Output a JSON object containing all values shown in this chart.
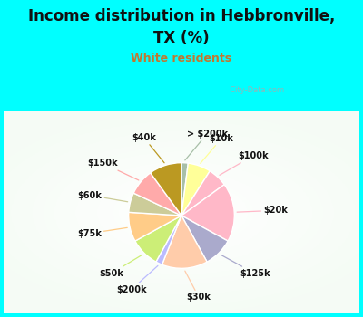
{
  "title_line1": "Income distribution in Hebbronville,",
  "title_line2": "TX (%)",
  "subtitle": "White residents",
  "title_fontsize": 12,
  "subtitle_fontsize": 9,
  "title_color": "#111111",
  "subtitle_color": "#c07830",
  "bg_color": "#00ffff",
  "chart_bg_color": "#e0f5e8",
  "watermark": "City-Data.com",
  "labels": [
    "> $200k",
    "$10k",
    "$100k",
    "$20k",
    "$125k",
    "$30k",
    "$200k",
    "$50k",
    "$75k",
    "$60k",
    "$150k",
    "$40k"
  ],
  "values": [
    2,
    7,
    6,
    18,
    9,
    14,
    2,
    9,
    9,
    6,
    8,
    10
  ],
  "colors": [
    "#a8bfa8",
    "#ffff99",
    "#ffb8c8",
    "#ffb8c8",
    "#aaaacc",
    "#ffccaa",
    "#bbbbff",
    "#ccee77",
    "#ffcc88",
    "#cccc99",
    "#ffaaaa",
    "#bb9922"
  ],
  "startangle": 90,
  "label_fontsize": 7,
  "figsize": [
    4.0,
    3.5
  ],
  "dpi": 100
}
